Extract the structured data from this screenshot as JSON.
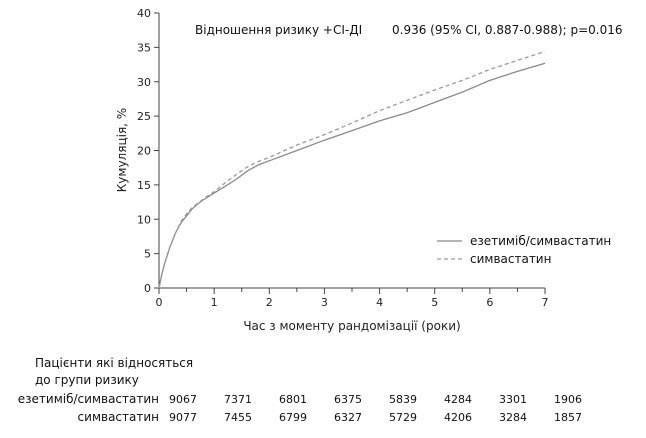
{
  "chart_data": {
    "type": "line",
    "xlabel": "Час з моменту рандомізації (роки)",
    "ylabel": "Кумуляція, %",
    "xlim": [
      0,
      7
    ],
    "ylim": [
      0,
      40
    ],
    "x_ticks": [
      0,
      1,
      2,
      3,
      4,
      5,
      6,
      7
    ],
    "y_ticks": [
      0,
      5,
      10,
      15,
      20,
      25,
      30,
      35,
      40
    ],
    "grid": false,
    "legend_position": "right",
    "annotation": {
      "label": "Відношення ризику  +CI-ДІ",
      "value": "0.936 (95% CI, 0.887-0.988); p=0.016"
    },
    "series": [
      {
        "name": "езетиміб/симвастатин",
        "style": "solid",
        "color": "#8a8a8a",
        "points": [
          [
            0,
            0
          ],
          [
            0.05,
            2
          ],
          [
            0.1,
            3.5
          ],
          [
            0.2,
            6
          ],
          [
            0.3,
            8
          ],
          [
            0.4,
            9.5
          ],
          [
            0.5,
            10.5
          ],
          [
            0.6,
            11.5
          ],
          [
            0.7,
            12.2
          ],
          [
            0.8,
            12.8
          ],
          [
            0.9,
            13.3
          ],
          [
            1,
            13.8
          ],
          [
            1.2,
            14.8
          ],
          [
            1.4,
            15.8
          ],
          [
            1.6,
            17
          ],
          [
            1.8,
            17.9
          ],
          [
            2,
            18.5
          ],
          [
            2.5,
            20
          ],
          [
            3,
            21.5
          ],
          [
            3.5,
            22.9
          ],
          [
            4,
            24.3
          ],
          [
            4.5,
            25.5
          ],
          [
            5,
            27
          ],
          [
            5.5,
            28.5
          ],
          [
            6,
            30.2
          ],
          [
            6.5,
            31.5
          ],
          [
            7,
            32.7
          ]
        ]
      },
      {
        "name": "симвастатин",
        "style": "dashed",
        "color": "#9a9a9a",
        "points": [
          [
            0,
            0
          ],
          [
            0.05,
            2
          ],
          [
            0.1,
            3.5
          ],
          [
            0.2,
            6
          ],
          [
            0.3,
            8
          ],
          [
            0.4,
            9.7
          ],
          [
            0.5,
            10.8
          ],
          [
            0.6,
            11.7
          ],
          [
            0.7,
            12.3
          ],
          [
            0.8,
            12.9
          ],
          [
            0.9,
            13.5
          ],
          [
            1,
            14
          ],
          [
            1.2,
            15.3
          ],
          [
            1.4,
            16.5
          ],
          [
            1.6,
            17.6
          ],
          [
            1.8,
            18.4
          ],
          [
            2,
            19
          ],
          [
            2.5,
            20.8
          ],
          [
            3,
            22.3
          ],
          [
            3.5,
            24
          ],
          [
            4,
            25.8
          ],
          [
            4.5,
            27.3
          ],
          [
            5,
            28.8
          ],
          [
            5.5,
            30.2
          ],
          [
            6,
            31.8
          ],
          [
            6.5,
            33.1
          ],
          [
            7,
            34.4
          ]
        ]
      }
    ]
  },
  "risk_table": {
    "title_line1": "Пацієнти які відносяться",
    "title_line2": "до групи ризику",
    "rows": [
      {
        "label": "езетиміб/симвастатин",
        "values": [
          "9067",
          "7371",
          "6801",
          "6375",
          "5839",
          "4284",
          "3301",
          "1906"
        ]
      },
      {
        "label": "симвастатин",
        "values": [
          "9077",
          "7455",
          "6799",
          "6327",
          "5729",
          "4206",
          "3284",
          "1857"
        ]
      }
    ]
  }
}
